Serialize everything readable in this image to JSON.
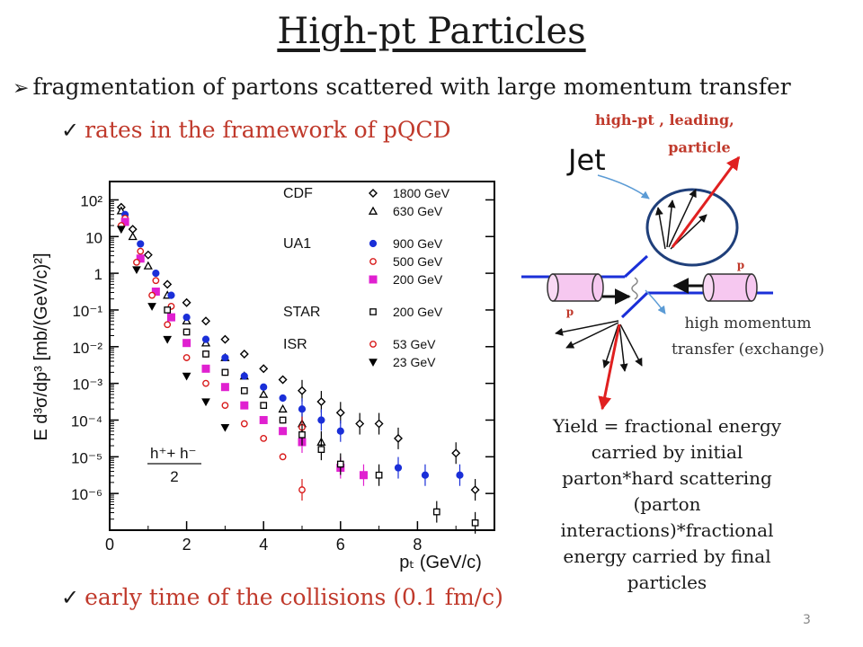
{
  "slide": {
    "title": "High-pt Particles",
    "bullet_main": "fragmentation of  partons scattered with large momentum transfer",
    "check_1": "rates in the framework of  pQCD",
    "check_2": "early time of  the collisions  (0.1 fm/c)",
    "yield_text": "Yield = fractional energy carried by initial parton*hard scattering (parton interactions)*fractional energy carried by final particles",
    "page_number": "3",
    "colors": {
      "accent_red": "#c0392b",
      "jet_red": "#e02020",
      "ellipse": "#1f3f7a",
      "parton_blue": "#1a2fd8"
    }
  },
  "diagram": {
    "jet_label": "Jet",
    "leading_label_1": "high-pt , leading,",
    "leading_label_2": "particle",
    "proton_label_right": "p",
    "proton_label_left": "p",
    "transfer_label_1": "high momentum",
    "transfer_label_2": "transfer (exchange)"
  },
  "chart_data": {
    "type": "scatter",
    "ylabel": "E d³σ/dp³ [mb/(GeV/c)²]",
    "xlabel": "pₜ (GeV/c)",
    "log_y": true,
    "xlim": [
      0,
      10
    ],
    "ylim": [
      -7,
      2.5
    ],
    "x_ticks": [
      "0",
      "2",
      "4",
      "6",
      "8"
    ],
    "y_ticks": [
      "10²",
      "10",
      "1",
      "10⁻¹",
      "10⁻²",
      "10⁻³",
      "10⁻⁴",
      "10⁻⁵",
      "10⁻⁶"
    ],
    "annotation": "h⁺+ h⁻ / 2",
    "legend_groups": [
      {
        "experiment": "CDF",
        "entries": [
          "1800 GeV",
          "630 GeV"
        ]
      },
      {
        "experiment": "UA1",
        "entries": [
          "900 GeV",
          "500 GeV",
          "200 GeV"
        ]
      },
      {
        "experiment": "STAR",
        "entries": [
          "200 GeV"
        ]
      },
      {
        "experiment": "ISR",
        "entries": [
          "53 GeV",
          "23 GeV"
        ]
      }
    ],
    "series": [
      {
        "name": "1800 GeV",
        "group": "CDF",
        "marker": "diamond-open",
        "color": "#000000",
        "x": [
          0.3,
          0.6,
          1.0,
          1.5,
          2.0,
          2.5,
          3.0,
          3.5,
          4.0,
          4.5,
          5.0,
          5.5,
          6.0,
          6.5,
          7.0,
          7.5,
          9.0,
          9.5
        ],
        "y": [
          1.8,
          1.2,
          0.5,
          -0.3,
          -0.8,
          -1.3,
          -1.8,
          -2.2,
          -2.6,
          -2.9,
          -3.2,
          -3.5,
          -3.8,
          -4.1,
          -4.1,
          -4.5,
          -4.9,
          -5.9
        ]
      },
      {
        "name": "630 GeV",
        "group": "CDF",
        "marker": "triangle-open",
        "color": "#000000",
        "x": [
          0.3,
          0.6,
          1.0,
          1.5,
          2.0,
          2.5,
          3.0,
          3.5,
          4.0,
          4.5,
          5.0,
          5.5
        ],
        "y": [
          1.7,
          1.0,
          0.2,
          -0.6,
          -1.3,
          -1.9,
          -2.3,
          -2.8,
          -3.3,
          -3.7,
          -4.1,
          -4.6
        ]
      },
      {
        "name": "900 GeV",
        "group": "UA1",
        "marker": "circle-filled",
        "color": "#1a2fd8",
        "x": [
          0.4,
          0.8,
          1.2,
          1.6,
          2.0,
          2.5,
          3.0,
          3.5,
          4.0,
          4.5,
          5.0,
          5.5,
          6.0,
          7.5,
          8.2,
          9.1
        ],
        "y": [
          1.6,
          0.8,
          0.0,
          -0.6,
          -1.2,
          -1.8,
          -2.3,
          -2.8,
          -3.1,
          -3.4,
          -3.7,
          -4.0,
          -4.3,
          -5.3,
          -5.5,
          -5.5
        ]
      },
      {
        "name": "500 GeV",
        "group": "UA1",
        "marker": "circle-open",
        "color": "#d81a1a",
        "x": [
          0.4,
          0.8,
          1.2,
          1.6,
          2.0,
          2.5,
          3.0,
          3.5,
          4.0,
          4.5,
          5.0
        ],
        "y": [
          1.5,
          0.6,
          -0.2,
          -0.9,
          -1.6,
          -2.2,
          -2.7,
          -3.2,
          -3.6,
          -4.0,
          -4.2
        ]
      },
      {
        "name": "200 GeV",
        "group": "UA1",
        "marker": "square-filled",
        "color": "#e020d0",
        "x": [
          0.4,
          0.8,
          1.2,
          1.6,
          2.0,
          2.5,
          3.0,
          3.5,
          4.0,
          4.5,
          5.0,
          6.0,
          6.6
        ],
        "y": [
          1.4,
          0.4,
          -0.5,
          -1.2,
          -1.9,
          -2.6,
          -3.1,
          -3.6,
          -4.0,
          -4.3,
          -4.6,
          -5.3,
          -5.5
        ]
      },
      {
        "name": "200 GeV",
        "group": "STAR",
        "marker": "square-open",
        "color": "#000000",
        "x": [
          1.5,
          2.0,
          2.5,
          3.0,
          3.5,
          4.0,
          4.5,
          5.0,
          5.5,
          6.0,
          7.0,
          8.5,
          9.5
        ],
        "y": [
          -1.0,
          -1.6,
          -2.2,
          -2.7,
          -3.2,
          -3.6,
          -4.0,
          -4.4,
          -4.8,
          -5.2,
          -5.5,
          -6.5,
          -6.8
        ]
      },
      {
        "name": "53 GeV",
        "group": "ISR",
        "marker": "circle-open",
        "color": "#d81a1a",
        "x": [
          0.3,
          0.7,
          1.1,
          1.5,
          2.0,
          2.5,
          3.0,
          3.5,
          4.0,
          4.5,
          5.0
        ],
        "y": [
          1.3,
          0.3,
          -0.6,
          -1.4,
          -2.3,
          -3.0,
          -3.6,
          -4.1,
          -4.5,
          -5.0,
          -5.9
        ]
      },
      {
        "name": "23 GeV",
        "group": "ISR",
        "marker": "triangle-down-filled",
        "color": "#000000",
        "x": [
          0.3,
          0.7,
          1.1,
          1.5,
          2.0,
          2.5,
          3.0
        ],
        "y": [
          1.2,
          0.1,
          -0.9,
          -1.8,
          -2.8,
          -3.5,
          -4.2
        ]
      }
    ]
  }
}
